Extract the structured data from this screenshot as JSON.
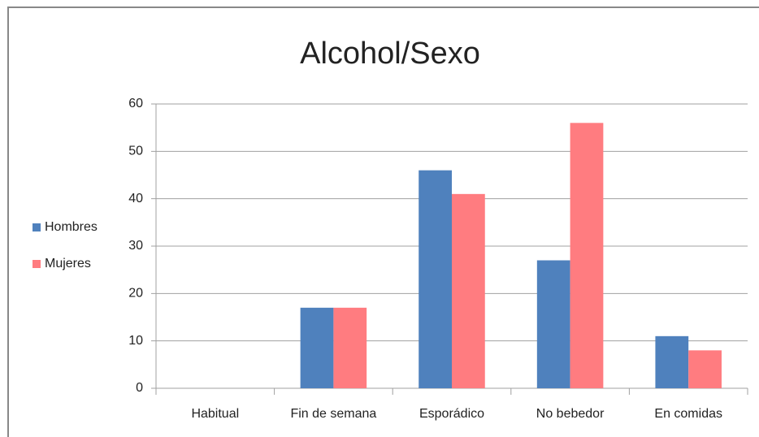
{
  "chart_data": {
    "type": "bar",
    "title": "Alcohol/Sexo",
    "categories": [
      "Habitual",
      "Fin de semana",
      "Esporádico",
      "No bebedor",
      "En comidas"
    ],
    "series": [
      {
        "name": "Hombres",
        "color": "#4f81bd",
        "values": [
          0,
          17,
          46,
          27,
          11
        ]
      },
      {
        "name": "Mujeres",
        "color": "#ff7c80",
        "values": [
          0,
          17,
          41,
          56,
          8
        ]
      }
    ],
    "ylim": [
      0,
      60
    ],
    "yticks": [
      0,
      10,
      20,
      30,
      40,
      50,
      60
    ],
    "grid": true,
    "legend": "left"
  }
}
